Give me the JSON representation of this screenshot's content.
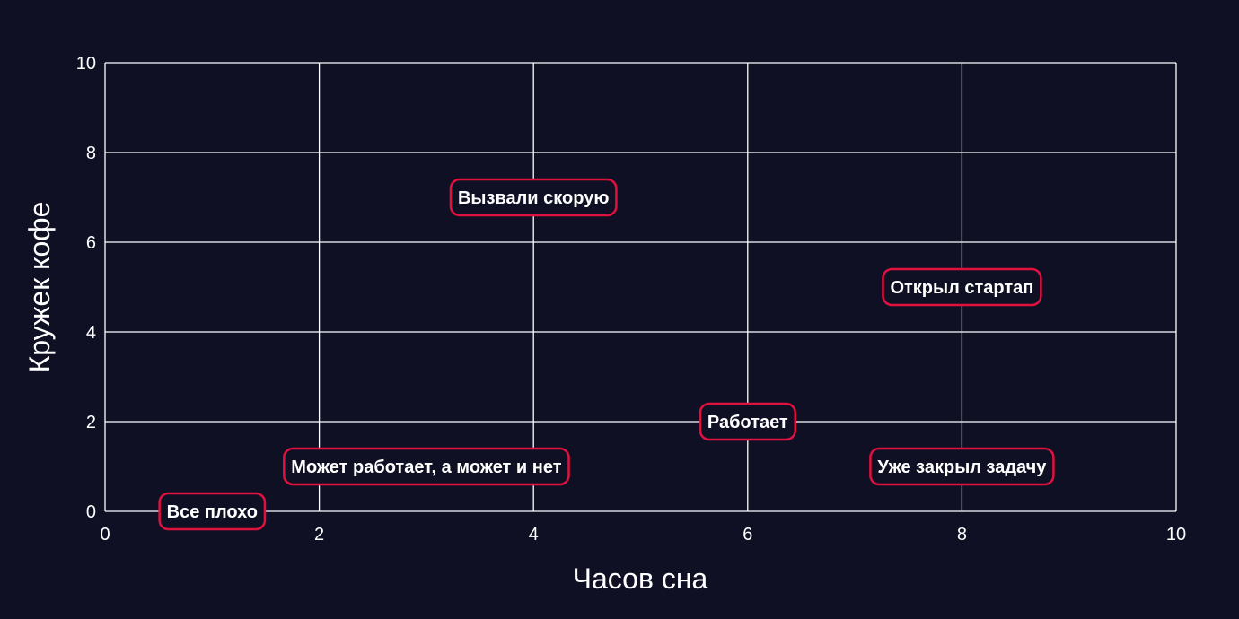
{
  "chart_data": {
    "type": "scatter",
    "title": "",
    "xlabel": "Часов сна",
    "ylabel": "Кружек кофе",
    "xlim": [
      0,
      10
    ],
    "ylim": [
      0,
      10
    ],
    "xticks": [
      0,
      2,
      4,
      6,
      8,
      10
    ],
    "yticks": [
      0,
      2,
      4,
      6,
      8,
      10
    ],
    "grid": true,
    "points": [
      {
        "x": 1,
        "y": 0,
        "label": "Все плохо"
      },
      {
        "x": 3,
        "y": 1,
        "label": "Может работает, а может и нет"
      },
      {
        "x": 4,
        "y": 7,
        "label": "Вызвали скорую"
      },
      {
        "x": 6,
        "y": 2,
        "label": "Работает"
      },
      {
        "x": 8,
        "y": 5,
        "label": "Открыл стартап"
      },
      {
        "x": 8,
        "y": 1,
        "label": "Уже закрыл задачу"
      }
    ]
  },
  "colors": {
    "background": "#0f1024",
    "grid": "#ffffff",
    "label_border": "#e0103f",
    "text": "#ffffff"
  }
}
